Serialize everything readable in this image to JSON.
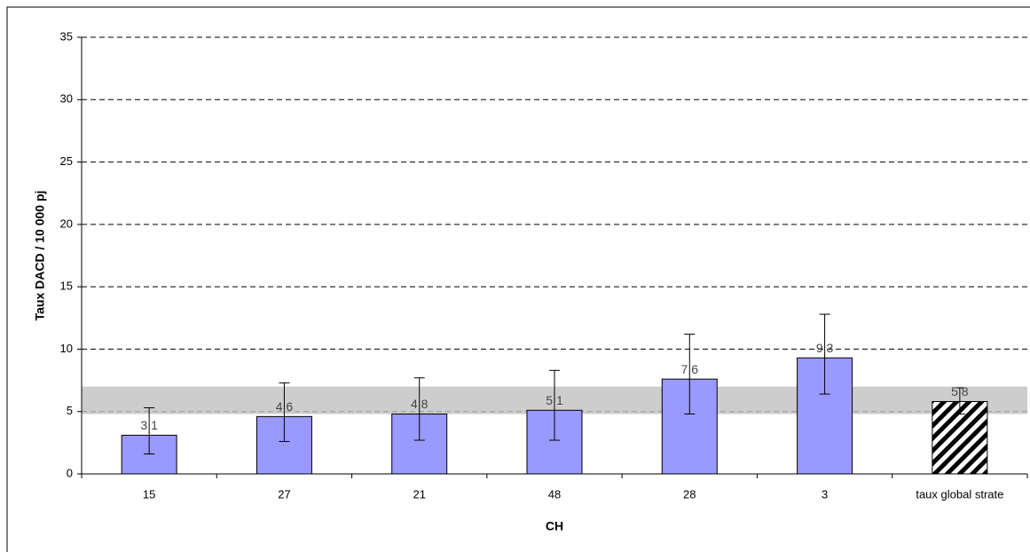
{
  "chart_data": {
    "type": "bar",
    "x_label": "CH",
    "y_label": "Taux DACD / 10 000 pj",
    "categories": [
      "15",
      "27",
      "21",
      "48",
      "28",
      "3",
      "taux global strate"
    ],
    "values": [
      3.1,
      4.6,
      4.8,
      5.1,
      7.6,
      9.3,
      5.8
    ],
    "error_low": [
      1.6,
      2.6,
      2.7,
      2.7,
      4.8,
      6.4,
      4.8
    ],
    "error_high": [
      5.3,
      7.3,
      7.7,
      8.3,
      11.2,
      12.8,
      6.9
    ],
    "bar_fill": [
      "#9999ff",
      "#9999ff",
      "#9999ff",
      "#9999ff",
      "#9999ff",
      "#9999ff",
      "hatch"
    ],
    "reference_band": [
      4.8,
      7.0
    ],
    "reference_band_color": "#c0c0c0",
    "ylim": [
      0,
      35
    ],
    "yticks": [
      0,
      5,
      10,
      15,
      20,
      25,
      30,
      35
    ],
    "grid": true
  }
}
